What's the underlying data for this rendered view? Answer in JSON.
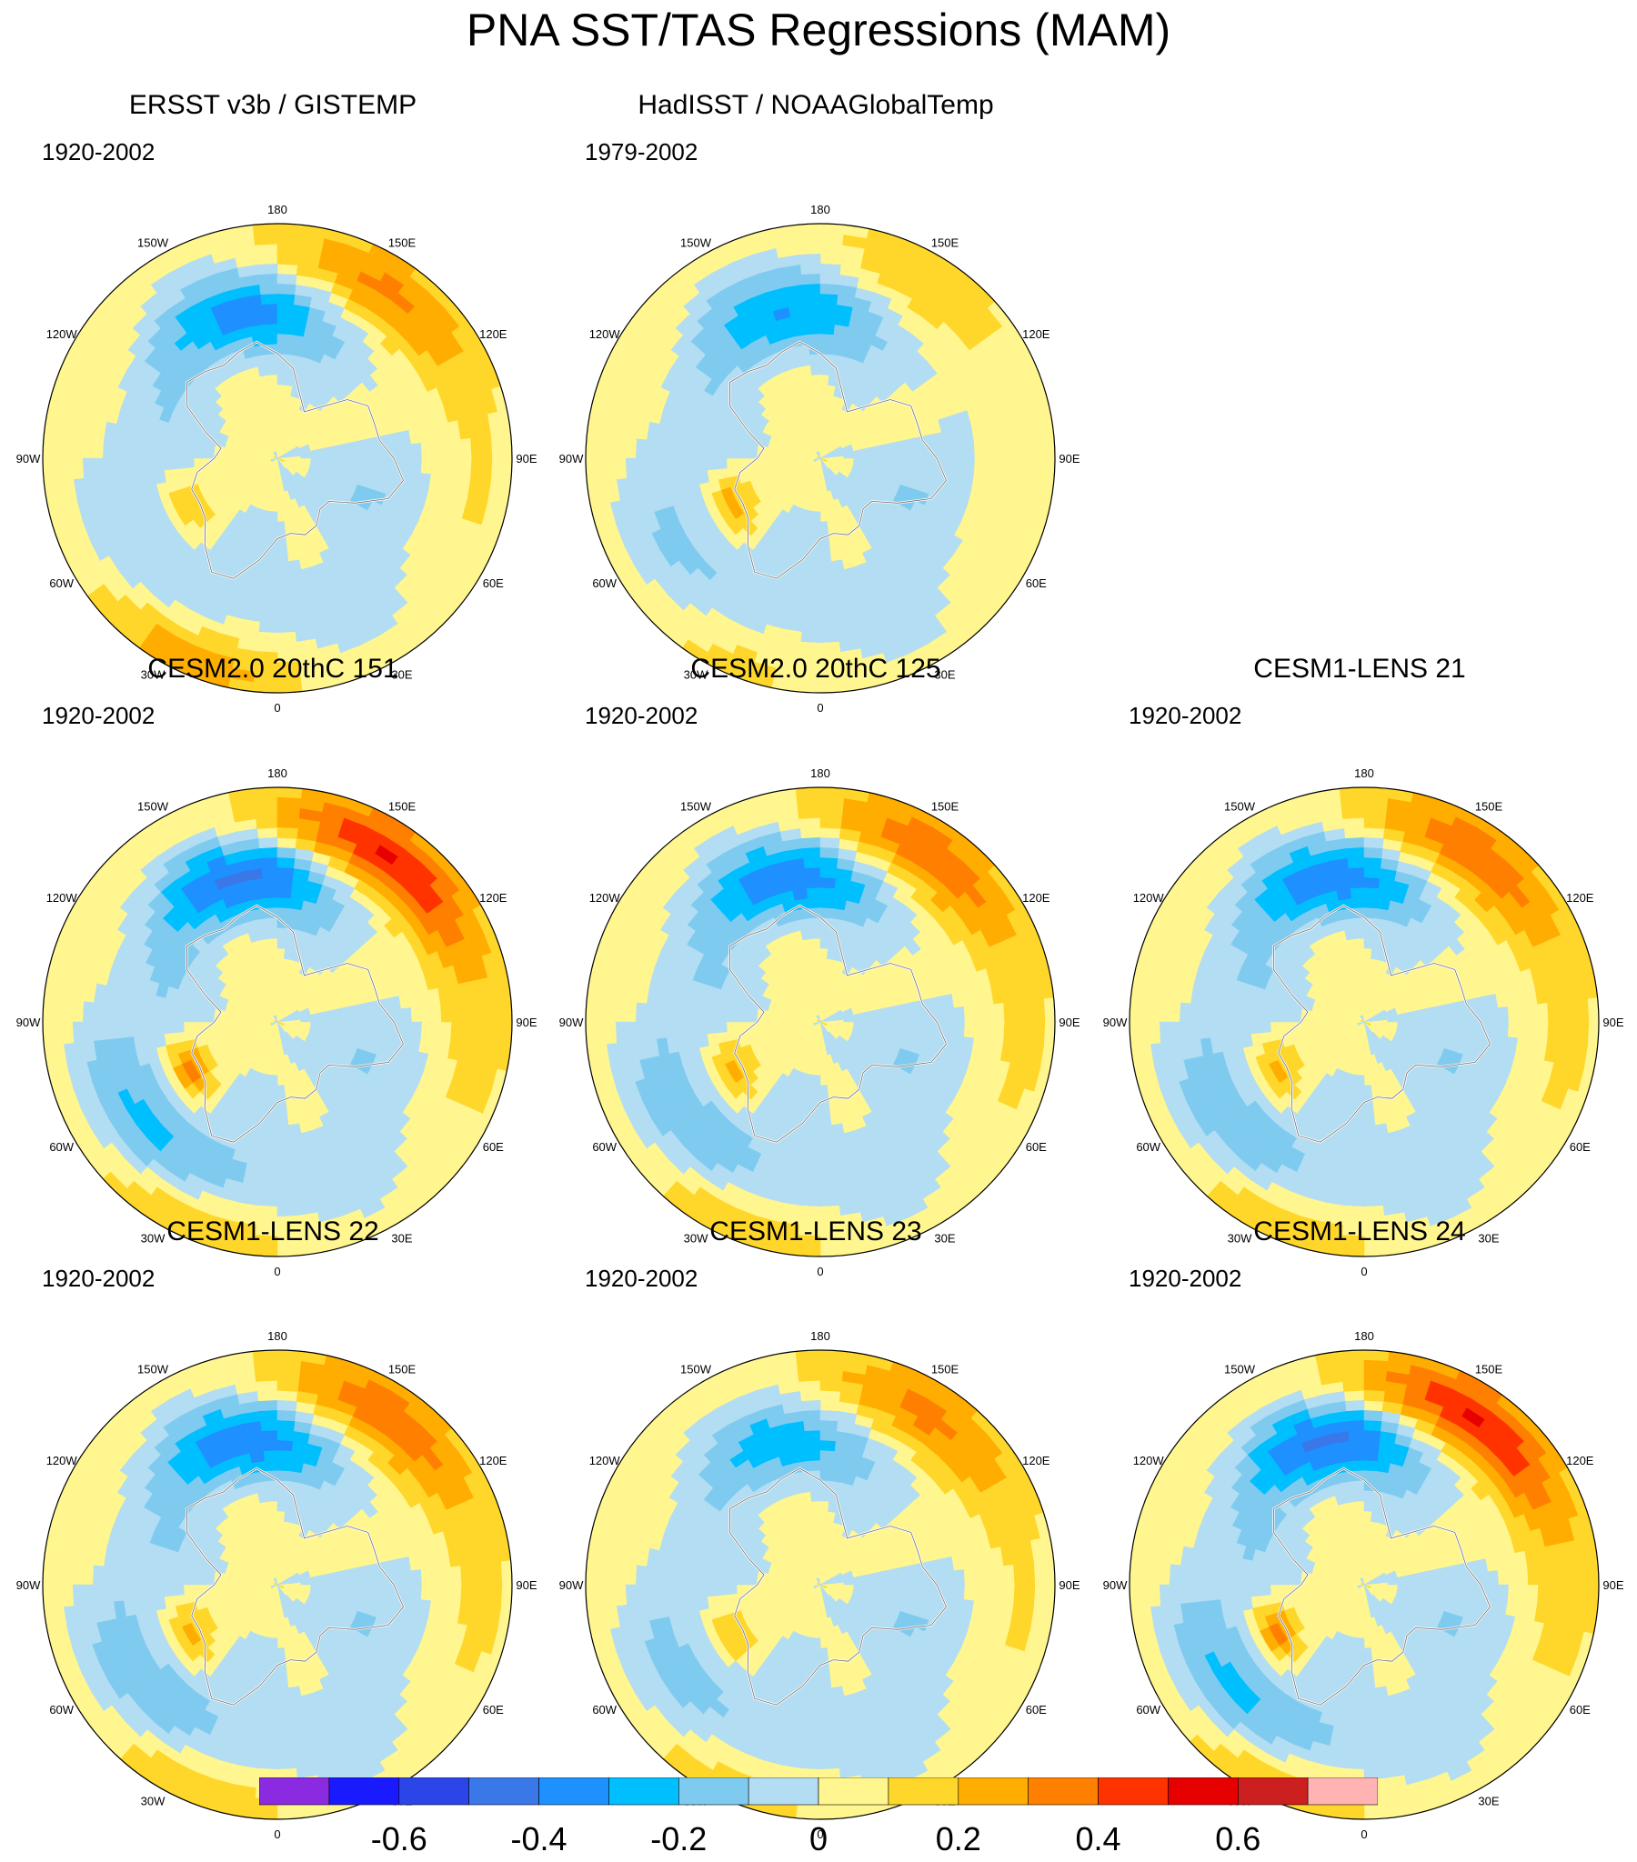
{
  "title": "PNA SST/TAS Regressions (MAM)",
  "chart_data": {
    "type": "polar-stereographic-contour-panels",
    "title": "PNA SST/TAS Regressions (MAM)",
    "longitude_labels": [
      "180",
      "150E",
      "120E",
      "90E",
      "60E",
      "30E",
      "0",
      "30W",
      "60W",
      "90W",
      "120W",
      "150W"
    ],
    "colorbar": {
      "levels": [
        -0.7,
        -0.6,
        -0.5,
        -0.4,
        -0.3,
        -0.2,
        -0.1,
        0,
        0.1,
        0.2,
        0.3,
        0.4,
        0.5,
        0.6,
        0.7
      ],
      "tick_labels": [
        "-0.6",
        "-0.4",
        "-0.2",
        "0",
        "0.2",
        "0.4",
        "0.6"
      ],
      "tick_values": [
        -0.6,
        -0.4,
        -0.2,
        0,
        0.2,
        0.4,
        0.6
      ],
      "colors": [
        "#8a2be2",
        "#1a1aff",
        "#2c45e8",
        "#3a78e8",
        "#1e90ff",
        "#00bfff",
        "#7fcbf0",
        "#b3ddf2",
        "#fff68f",
        "#ffd62a",
        "#ffad00",
        "#ff7f00",
        "#ff3300",
        "#e60000",
        "#cc1f1f",
        "#ffb3b3"
      ]
    },
    "panels": [
      {
        "id": "ersst",
        "title": "ERSST v3b / GISTEMP",
        "period": "1920-2002",
        "row": 0,
        "col": 0,
        "variant": "obs"
      },
      {
        "id": "hadisst",
        "title": "HadISST / NOAAGlobalTemp",
        "period": "1979-2002",
        "row": 0,
        "col": 1,
        "variant": "obs2"
      },
      {
        "id": "cesm2-151",
        "title": "CESM2.0 20thC 151",
        "period": "1920-2002",
        "row": 1,
        "col": 0,
        "variant": "strong"
      },
      {
        "id": "cesm2-125",
        "title": "CESM2.0 20thC 125",
        "period": "1920-2002",
        "row": 1,
        "col": 1,
        "variant": "model"
      },
      {
        "id": "lens21",
        "title": "CESM1-LENS 21",
        "period": "1920-2002",
        "row": 1,
        "col": 2,
        "variant": "model"
      },
      {
        "id": "lens22",
        "title": "CESM1-LENS 22",
        "period": "1920-2002",
        "row": 2,
        "col": 0,
        "variant": "model"
      },
      {
        "id": "lens23",
        "title": "CESM1-LENS 23",
        "period": "1920-2002",
        "row": 2,
        "col": 1,
        "variant": "weak"
      },
      {
        "id": "lens24",
        "title": "CESM1-LENS 24",
        "period": "1920-2002",
        "row": 2,
        "col": 2,
        "variant": "strong"
      }
    ]
  }
}
